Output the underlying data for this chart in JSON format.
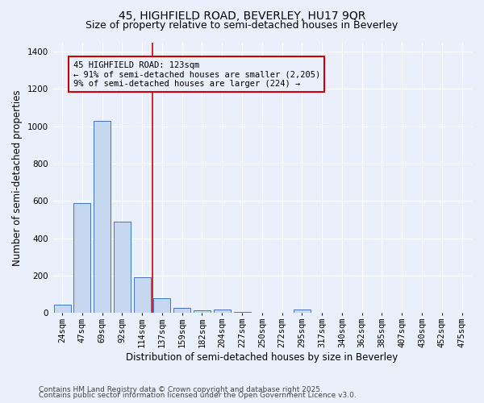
{
  "title_line1": "45, HIGHFIELD ROAD, BEVERLEY, HU17 9QR",
  "title_line2": "Size of property relative to semi-detached houses in Beverley",
  "xlabel": "Distribution of semi-detached houses by size in Beverley",
  "ylabel": "Number of semi-detached properties",
  "categories": [
    "24sqm",
    "47sqm",
    "69sqm",
    "92sqm",
    "114sqm",
    "137sqm",
    "159sqm",
    "182sqm",
    "204sqm",
    "227sqm",
    "250sqm",
    "272sqm",
    "295sqm",
    "317sqm",
    "340sqm",
    "362sqm",
    "385sqm",
    "407sqm",
    "430sqm",
    "452sqm",
    "475sqm"
  ],
  "values": [
    45,
    590,
    1030,
    490,
    190,
    80,
    27,
    15,
    20,
    5,
    0,
    0,
    18,
    0,
    0,
    0,
    0,
    0,
    0,
    0,
    0
  ],
  "bar_color": "#c5d8f0",
  "bar_edge_color": "#4472c4",
  "vline_index": 4,
  "vline_color": "#cc0000",
  "annotation_line1": "45 HIGHFIELD ROAD: 123sqm",
  "annotation_line2": "← 91% of semi-detached houses are smaller (2,205)",
  "annotation_line3": "9% of semi-detached houses are larger (224) →",
  "annotation_box_color": "#cc0000",
  "ylim": [
    0,
    1450
  ],
  "yticks": [
    0,
    200,
    400,
    600,
    800,
    1000,
    1200,
    1400
  ],
  "background_color": "#eaf0fb",
  "grid_color": "#ffffff",
  "footer_line1": "Contains HM Land Registry data © Crown copyright and database right 2025.",
  "footer_line2": "Contains public sector information licensed under the Open Government Licence v3.0.",
  "title_fontsize": 10,
  "subtitle_fontsize": 9,
  "axis_label_fontsize": 8.5,
  "tick_fontsize": 7.5,
  "annotation_fontsize": 7.5,
  "footer_fontsize": 6.5
}
